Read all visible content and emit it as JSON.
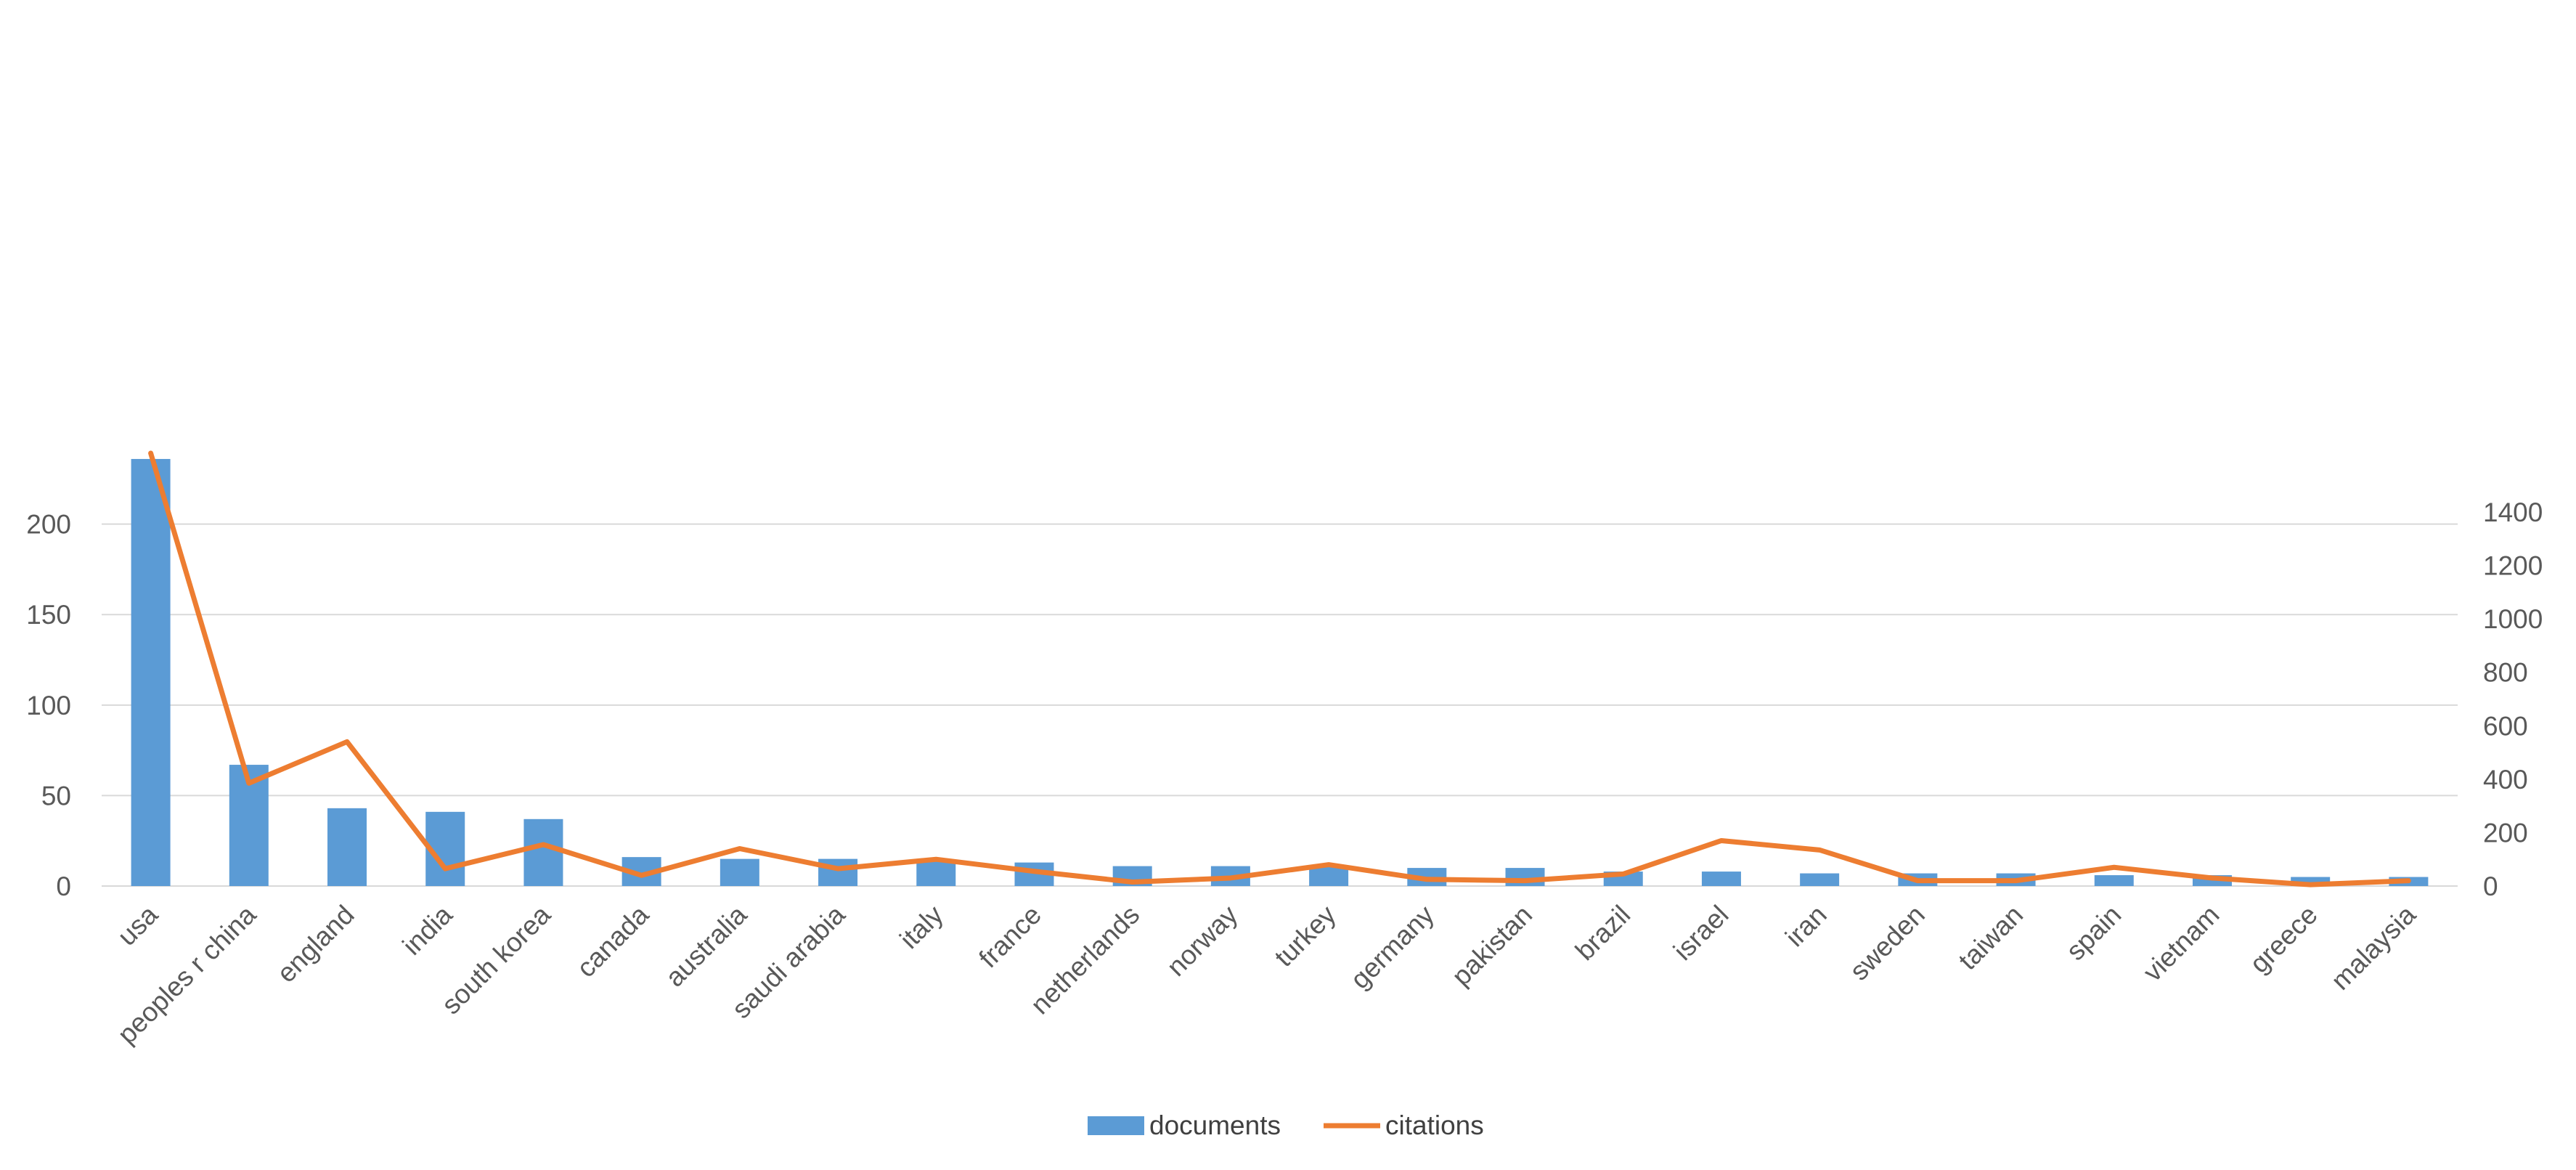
{
  "chart_data": {
    "type": "bar",
    "categories": [
      "usa",
      "peoples r china",
      "england",
      "india",
      "south korea",
      "canada",
      "australia",
      "saudi arabia",
      "italy",
      "france",
      "netherlands",
      "norway",
      "turkey",
      "germany",
      "pakistan",
      "brazil",
      "israel",
      "iran",
      "sweden",
      "taiwan",
      "spain",
      "vietnam",
      "greece",
      "malaysia"
    ],
    "series": [
      {
        "name": "documents",
        "type": "bar",
        "axis": "left",
        "color": "#5B9BD5",
        "values": [
          236,
          67,
          43,
          41,
          37,
          16,
          15,
          15,
          14,
          13,
          11,
          11,
          11,
          10,
          10,
          8,
          8,
          7,
          7,
          7,
          6,
          6,
          5,
          5
        ]
      },
      {
        "name": "citations",
        "type": "line",
        "axis": "right",
        "color": "#ED7D31",
        "values": [
          1620,
          385,
          540,
          65,
          155,
          40,
          140,
          65,
          100,
          55,
          15,
          30,
          80,
          25,
          20,
          45,
          170,
          135,
          20,
          20,
          70,
          30,
          5,
          20
        ]
      }
    ],
    "y_left": {
      "lim": [
        0,
        240
      ],
      "ticks": [
        0,
        50,
        100,
        150,
        200
      ]
    },
    "y_right": {
      "lim": [
        0,
        1650
      ],
      "ticks": [
        0,
        200,
        400,
        600,
        800,
        1000,
        1200,
        1400
      ]
    },
    "grid": true,
    "legend": {
      "position": "bottom",
      "entries": [
        "documents",
        "citations"
      ]
    },
    "colors": {
      "gridline": "#D9D9D9",
      "axis_text": "#595959"
    }
  }
}
